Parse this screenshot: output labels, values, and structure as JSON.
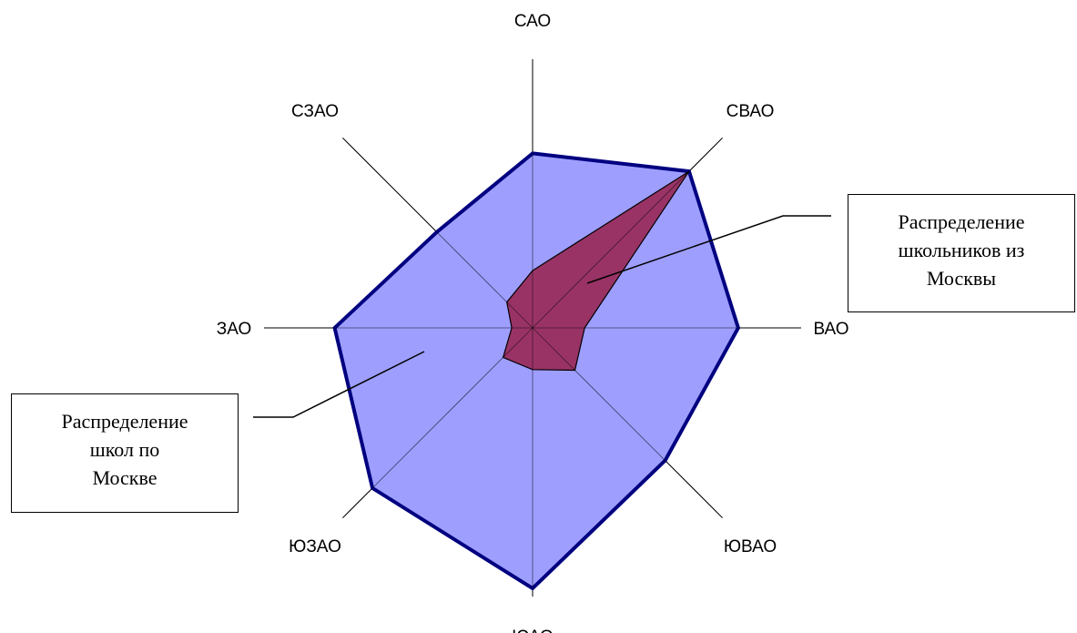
{
  "chart_data": {
    "type": "radar",
    "categories": [
      "САО",
      "СВАО",
      "ВАО",
      "ЮВАО",
      "ЮАО",
      "ЮЗАО",
      "ЗАО",
      "СЗАО"
    ],
    "series": [
      {
        "name": "Распределение школ по Москве",
        "values": [
          0.67,
          0.85,
          0.79,
          0.72,
          1.0,
          0.87,
          0.76,
          0.52
        ],
        "color": "#9999ff",
        "border": "#000080"
      },
      {
        "name": "Распределение школьников из Москвы",
        "values": [
          0.22,
          0.85,
          0.2,
          0.23,
          0.16,
          0.16,
          0.08,
          0.14
        ],
        "color": "#993366",
        "border": "#000000"
      }
    ],
    "rmax": 1.0,
    "legend": "callouts",
    "grid": false
  },
  "callouts": {
    "students": [
      "Распределение",
      "школьников из",
      "Москвы"
    ],
    "schools": [
      "Распределение",
      "школ по",
      "Москве"
    ]
  }
}
